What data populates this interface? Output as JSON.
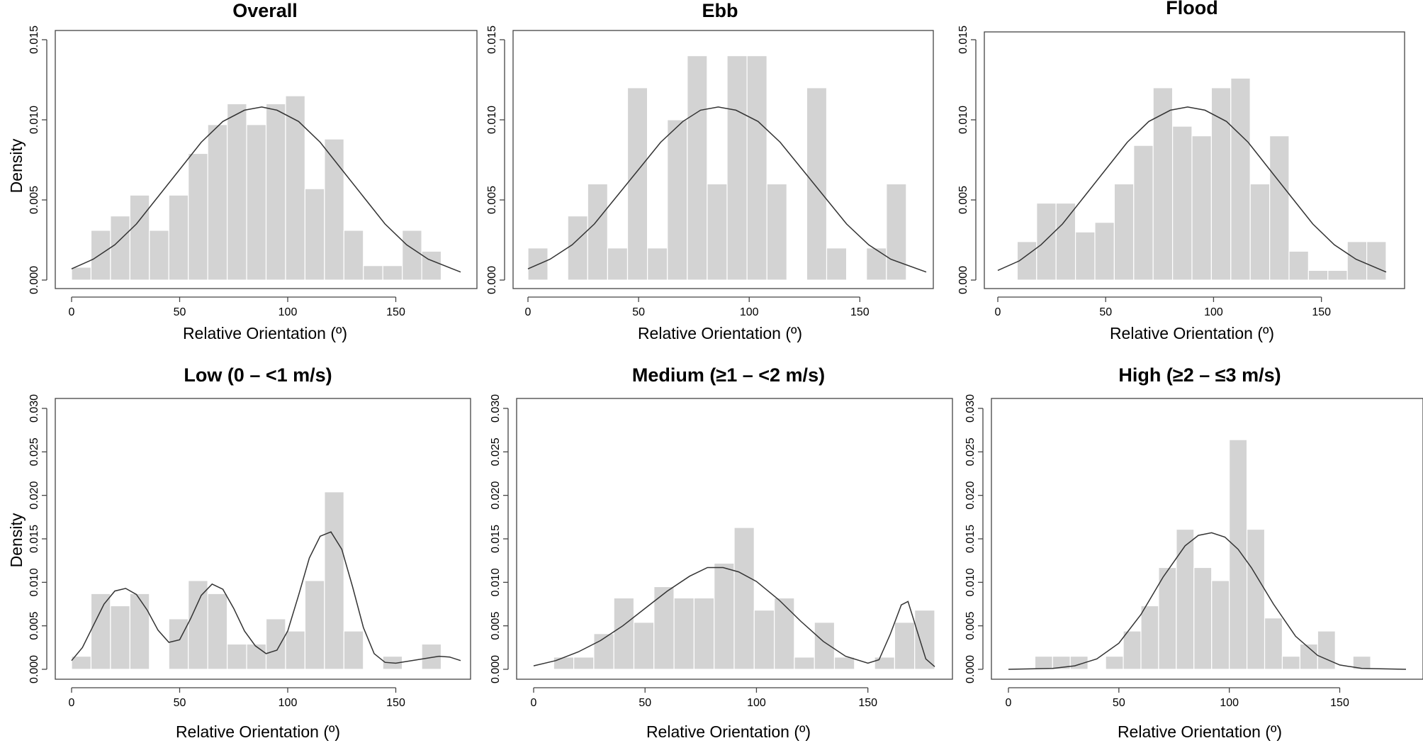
{
  "chart_data": [
    {
      "type": "bar",
      "title": "Overall",
      "xlabel": "Relative Orientation (º)",
      "ylabel": "Density",
      "xlim": [
        0,
        180
      ],
      "ylim": [
        0,
        0.015
      ],
      "xticks": [
        "0",
        "50",
        "100",
        "150"
      ],
      "yticks": [
        "0.000",
        "0.005",
        "0.010",
        "0.015"
      ],
      "bin_width": 9,
      "bins": [
        {
          "x0": 0,
          "density": 0.0008
        },
        {
          "x0": 9,
          "density": 0.0031
        },
        {
          "x0": 18,
          "density": 0.004
        },
        {
          "x0": 27,
          "density": 0.0053
        },
        {
          "x0": 36,
          "density": 0.0031
        },
        {
          "x0": 45,
          "density": 0.0053
        },
        {
          "x0": 54,
          "density": 0.0079
        },
        {
          "x0": 63,
          "density": 0.0097
        },
        {
          "x0": 72,
          "density": 0.011
        },
        {
          "x0": 81,
          "density": 0.0097
        },
        {
          "x0": 90,
          "density": 0.011
        },
        {
          "x0": 99,
          "density": 0.0115
        },
        {
          "x0": 108,
          "density": 0.0057
        },
        {
          "x0": 117,
          "density": 0.0088
        },
        {
          "x0": 126,
          "density": 0.0031
        },
        {
          "x0": 135,
          "density": 0.0009
        },
        {
          "x0": 144,
          "density": 0.0009
        },
        {
          "x0": 153,
          "density": 0.0031
        },
        {
          "x0": 162,
          "density": 0.0018
        }
      ],
      "curve": [
        [
          0,
          0.0007
        ],
        [
          10,
          0.0013
        ],
        [
          20,
          0.0022
        ],
        [
          30,
          0.0035
        ],
        [
          40,
          0.0052
        ],
        [
          50,
          0.0069
        ],
        [
          60,
          0.0086
        ],
        [
          70,
          0.0099
        ],
        [
          80,
          0.0106
        ],
        [
          88,
          0.0108
        ],
        [
          95,
          0.0106
        ],
        [
          105,
          0.0099
        ],
        [
          115,
          0.0086
        ],
        [
          125,
          0.0069
        ],
        [
          135,
          0.0052
        ],
        [
          145,
          0.0035
        ],
        [
          155,
          0.0022
        ],
        [
          165,
          0.0013
        ],
        [
          180,
          0.0005
        ]
      ]
    },
    {
      "type": "bar",
      "title": "Ebb",
      "xlabel": "Relative Orientation (º)",
      "ylabel": "",
      "xlim": [
        0,
        180
      ],
      "ylim": [
        0,
        0.015
      ],
      "xticks": [
        "0",
        "50",
        "100",
        "150"
      ],
      "yticks": [
        "0.000",
        "0.005",
        "0.010",
        "0.015"
      ],
      "bin_width": 9,
      "bins": [
        {
          "x0": 0,
          "density": 0.002
        },
        {
          "x0": 9,
          "density": 0
        },
        {
          "x0": 18,
          "density": 0.004
        },
        {
          "x0": 27,
          "density": 0.006
        },
        {
          "x0": 36,
          "density": 0.002
        },
        {
          "x0": 45,
          "density": 0.012
        },
        {
          "x0": 54,
          "density": 0.002
        },
        {
          "x0": 63,
          "density": 0.01
        },
        {
          "x0": 72,
          "density": 0.014
        },
        {
          "x0": 81,
          "density": 0.006
        },
        {
          "x0": 90,
          "density": 0.014
        },
        {
          "x0": 99,
          "density": 0.014
        },
        {
          "x0": 108,
          "density": 0.006
        },
        {
          "x0": 117,
          "density": 0
        },
        {
          "x0": 126,
          "density": 0.012
        },
        {
          "x0": 135,
          "density": 0.002
        },
        {
          "x0": 144,
          "density": 0
        },
        {
          "x0": 153,
          "density": 0.002
        },
        {
          "x0": 162,
          "density": 0.006
        }
      ],
      "curve": [
        [
          0,
          0.0007
        ],
        [
          10,
          0.0013
        ],
        [
          20,
          0.0022
        ],
        [
          30,
          0.0035
        ],
        [
          40,
          0.0052
        ],
        [
          50,
          0.0069
        ],
        [
          60,
          0.0086
        ],
        [
          70,
          0.0099
        ],
        [
          78,
          0.0106
        ],
        [
          86,
          0.0108
        ],
        [
          94,
          0.0106
        ],
        [
          104,
          0.0099
        ],
        [
          114,
          0.0086
        ],
        [
          124,
          0.0069
        ],
        [
          134,
          0.0052
        ],
        [
          144,
          0.0035
        ],
        [
          154,
          0.0022
        ],
        [
          164,
          0.0013
        ],
        [
          180,
          0.0005
        ]
      ]
    },
    {
      "type": "bar",
      "title": "Flood",
      "xlabel": "Relative Orientation (º)",
      "ylabel": "",
      "xlim": [
        0,
        180
      ],
      "ylim": [
        0,
        0.015
      ],
      "xticks": [
        "0",
        "50",
        "100",
        "150"
      ],
      "yticks": [
        "0.000",
        "0.005",
        "0.010",
        "0.015"
      ],
      "bin_width": 9,
      "bins": [
        {
          "x0": 0,
          "density": 0
        },
        {
          "x0": 9,
          "density": 0.0024
        },
        {
          "x0": 18,
          "density": 0.0048
        },
        {
          "x0": 27,
          "density": 0.0048
        },
        {
          "x0": 36,
          "density": 0.003
        },
        {
          "x0": 45,
          "density": 0.0036
        },
        {
          "x0": 54,
          "density": 0.006
        },
        {
          "x0": 63,
          "density": 0.0084
        },
        {
          "x0": 72,
          "density": 0.012
        },
        {
          "x0": 81,
          "density": 0.0096
        },
        {
          "x0": 90,
          "density": 0.009
        },
        {
          "x0": 99,
          "density": 0.012
        },
        {
          "x0": 108,
          "density": 0.0126
        },
        {
          "x0": 117,
          "density": 0.006
        },
        {
          "x0": 126,
          "density": 0.009
        },
        {
          "x0": 135,
          "density": 0.0018
        },
        {
          "x0": 144,
          "density": 0.0006
        },
        {
          "x0": 153,
          "density": 0.0006
        },
        {
          "x0": 162,
          "density": 0.0024
        },
        {
          "x0": 171,
          "density": 0.0024
        }
      ],
      "curve": [
        [
          0,
          0.0006
        ],
        [
          10,
          0.0012
        ],
        [
          20,
          0.0022
        ],
        [
          30,
          0.0035
        ],
        [
          40,
          0.0052
        ],
        [
          50,
          0.0069
        ],
        [
          60,
          0.0086
        ],
        [
          70,
          0.0099
        ],
        [
          80,
          0.0106
        ],
        [
          88,
          0.0108
        ],
        [
          96,
          0.0106
        ],
        [
          106,
          0.0099
        ],
        [
          116,
          0.0086
        ],
        [
          126,
          0.0069
        ],
        [
          136,
          0.0052
        ],
        [
          146,
          0.0035
        ],
        [
          156,
          0.0022
        ],
        [
          166,
          0.0013
        ],
        [
          180,
          0.0005
        ]
      ]
    },
    {
      "type": "bar",
      "title": "Low (0 – <1 m/s)",
      "xlabel": "Relative Orientation (º)",
      "ylabel": "Density",
      "xlim": [
        0,
        180
      ],
      "ylim": [
        0,
        0.03
      ],
      "xticks": [
        "0",
        "50",
        "100",
        "150"
      ],
      "yticks": [
        "0.000",
        "0.005",
        "0.010",
        "0.015",
        "0.020",
        "0.025",
        "0.030"
      ],
      "bin_width": 9,
      "bins": [
        {
          "x0": 0,
          "density": 0.0015
        },
        {
          "x0": 9,
          "density": 0.0087
        },
        {
          "x0": 18,
          "density": 0.0073
        },
        {
          "x0": 27,
          "density": 0.0087
        },
        {
          "x0": 36,
          "density": 0
        },
        {
          "x0": 45,
          "density": 0.0058
        },
        {
          "x0": 54,
          "density": 0.0102
        },
        {
          "x0": 63,
          "density": 0.0087
        },
        {
          "x0": 72,
          "density": 0.0029
        },
        {
          "x0": 81,
          "density": 0.0029
        },
        {
          "x0": 90,
          "density": 0.0058
        },
        {
          "x0": 99,
          "density": 0.0044
        },
        {
          "x0": 108,
          "density": 0.0102
        },
        {
          "x0": 117,
          "density": 0.0204
        },
        {
          "x0": 126,
          "density": 0.0044
        },
        {
          "x0": 135,
          "density": 0
        },
        {
          "x0": 144,
          "density": 0.0015
        },
        {
          "x0": 153,
          "density": 0
        },
        {
          "x0": 162,
          "density": 0.0029
        }
      ],
      "curve": [
        [
          0,
          0.001
        ],
        [
          5,
          0.0025
        ],
        [
          10,
          0.005
        ],
        [
          15,
          0.0075
        ],
        [
          20,
          0.009
        ],
        [
          25,
          0.0093
        ],
        [
          30,
          0.0086
        ],
        [
          35,
          0.0068
        ],
        [
          40,
          0.0045
        ],
        [
          45,
          0.0031
        ],
        [
          50,
          0.0034
        ],
        [
          55,
          0.0058
        ],
        [
          60,
          0.0085
        ],
        [
          65,
          0.0098
        ],
        [
          70,
          0.0092
        ],
        [
          75,
          0.007
        ],
        [
          80,
          0.0044
        ],
        [
          85,
          0.0027
        ],
        [
          90,
          0.0018
        ],
        [
          95,
          0.0022
        ],
        [
          100,
          0.0044
        ],
        [
          105,
          0.0085
        ],
        [
          110,
          0.0128
        ],
        [
          115,
          0.0153
        ],
        [
          120,
          0.0158
        ],
        [
          125,
          0.0138
        ],
        [
          130,
          0.0095
        ],
        [
          135,
          0.0048
        ],
        [
          140,
          0.0018
        ],
        [
          145,
          0.0008
        ],
        [
          150,
          0.0007
        ],
        [
          160,
          0.0011
        ],
        [
          170,
          0.0015
        ],
        [
          175,
          0.0014
        ],
        [
          180,
          0.001
        ]
      ]
    },
    {
      "type": "bar",
      "title": "Medium (≥1 – <2 m/s)",
      "xlabel": "Relative Orientation (º)",
      "ylabel": "",
      "xlim": [
        0,
        180
      ],
      "ylim": [
        0,
        0.03
      ],
      "xticks": [
        "0",
        "50",
        "100",
        "150"
      ],
      "yticks": [
        "0.000",
        "0.005",
        "0.010",
        "0.015",
        "0.020",
        "0.025",
        "0.030"
      ],
      "bin_width": 9,
      "bins": [
        {
          "x0": 0,
          "density": 0
        },
        {
          "x0": 9,
          "density": 0.0014
        },
        {
          "x0": 18,
          "density": 0.0014
        },
        {
          "x0": 27,
          "density": 0.0041
        },
        {
          "x0": 36,
          "density": 0.0082
        },
        {
          "x0": 45,
          "density": 0.0054
        },
        {
          "x0": 54,
          "density": 0.0095
        },
        {
          "x0": 63,
          "density": 0.0082
        },
        {
          "x0": 72,
          "density": 0.0082
        },
        {
          "x0": 81,
          "density": 0.0122
        },
        {
          "x0": 90,
          "density": 0.0163
        },
        {
          "x0": 99,
          "density": 0.0068
        },
        {
          "x0": 108,
          "density": 0.0082
        },
        {
          "x0": 117,
          "density": 0.0014
        },
        {
          "x0": 126,
          "density": 0.0054
        },
        {
          "x0": 135,
          "density": 0.0014
        },
        {
          "x0": 144,
          "density": 0
        },
        {
          "x0": 153,
          "density": 0.0014
        },
        {
          "x0": 162,
          "density": 0.0054
        },
        {
          "x0": 171,
          "density": 0.0068
        }
      ],
      "curve": [
        [
          0,
          0.0004
        ],
        [
          10,
          0.001
        ],
        [
          20,
          0.002
        ],
        [
          30,
          0.0033
        ],
        [
          40,
          0.005
        ],
        [
          50,
          0.007
        ],
        [
          60,
          0.009
        ],
        [
          70,
          0.0107
        ],
        [
          78,
          0.0117
        ],
        [
          85,
          0.0117
        ],
        [
          92,
          0.0112
        ],
        [
          100,
          0.0101
        ],
        [
          110,
          0.008
        ],
        [
          120,
          0.0055
        ],
        [
          130,
          0.0032
        ],
        [
          140,
          0.0015
        ],
        [
          150,
          0.0007
        ],
        [
          155,
          0.0011
        ],
        [
          160,
          0.004
        ],
        [
          165,
          0.0074
        ],
        [
          168,
          0.0078
        ],
        [
          172,
          0.0045
        ],
        [
          176,
          0.0012
        ],
        [
          180,
          0.0003
        ]
      ]
    },
    {
      "type": "bar",
      "title": "High (≥2 – ≤3 m/s)",
      "xlabel": "Relative Orientation (º)",
      "ylabel": "",
      "xlim": [
        0,
        180
      ],
      "ylim": [
        0,
        0.03
      ],
      "xticks": [
        "0",
        "50",
        "100",
        "150"
      ],
      "yticks": [
        "0.000",
        "0.005",
        "0.010",
        "0.015",
        "0.020",
        "0.025",
        "0.030"
      ],
      "bin_width": 8,
      "bins": [
        {
          "x0": 12,
          "density": 0.0015
        },
        {
          "x0": 20,
          "density": 0.0015
        },
        {
          "x0": 28,
          "density": 0.0015
        },
        {
          "x0": 36,
          "density": 0
        },
        {
          "x0": 44,
          "density": 0.0015
        },
        {
          "x0": 52,
          "density": 0.0044
        },
        {
          "x0": 60,
          "density": 0.0073
        },
        {
          "x0": 68,
          "density": 0.0117
        },
        {
          "x0": 76,
          "density": 0.0161
        },
        {
          "x0": 84,
          "density": 0.0117
        },
        {
          "x0": 92,
          "density": 0.0102
        },
        {
          "x0": 100,
          "density": 0.0264
        },
        {
          "x0": 108,
          "density": 0.0161
        },
        {
          "x0": 116,
          "density": 0.0059
        },
        {
          "x0": 124,
          "density": 0.0015
        },
        {
          "x0": 132,
          "density": 0.0029
        },
        {
          "x0": 140,
          "density": 0.0044
        },
        {
          "x0": 148,
          "density": 0
        },
        {
          "x0": 156,
          "density": 0.0015
        }
      ],
      "curve": [
        [
          0,
          0.0
        ],
        [
          20,
          0.0001
        ],
        [
          30,
          0.0004
        ],
        [
          40,
          0.0012
        ],
        [
          50,
          0.003
        ],
        [
          60,
          0.0063
        ],
        [
          70,
          0.0106
        ],
        [
          80,
          0.0142
        ],
        [
          86,
          0.0154
        ],
        [
          92,
          0.0157
        ],
        [
          98,
          0.0152
        ],
        [
          104,
          0.0138
        ],
        [
          110,
          0.0117
        ],
        [
          120,
          0.0075
        ],
        [
          130,
          0.0038
        ],
        [
          140,
          0.0016
        ],
        [
          150,
          0.0005
        ],
        [
          160,
          0.0001
        ],
        [
          180,
          0.0
        ]
      ]
    }
  ]
}
